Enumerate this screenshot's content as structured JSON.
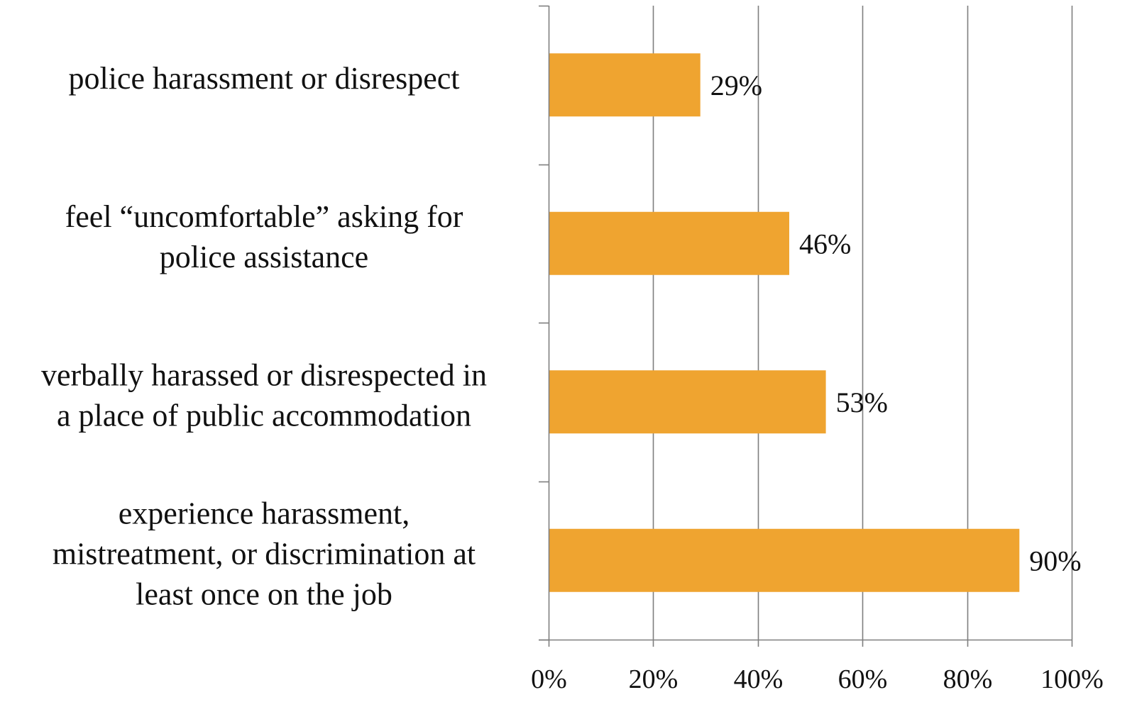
{
  "chart_data": {
    "type": "bar",
    "orientation": "horizontal",
    "categories": [
      "police harassment or disrespect",
      "feel “uncomfortable” asking for police assistance",
      "verbally harassed or disrespected in a place of public accommodation",
      "experience harassment, mistreatment, or discrimination at least once on the job"
    ],
    "category_lines": [
      [
        "police harassment or disrespect"
      ],
      [
        "feel “uncomfortable” asking for",
        "police assistance"
      ],
      [
        "verbally harassed or disrespected in",
        "a place of public accommodation"
      ],
      [
        "experience harassment,",
        "mistreatment, or discrimination at",
        "least once on the job"
      ]
    ],
    "values": [
      29,
      46,
      53,
      90
    ],
    "data_labels": [
      "29%",
      "46%",
      "53%",
      "90%"
    ],
    "xlim": [
      0,
      100
    ],
    "xticks": [
      0,
      20,
      40,
      60,
      80,
      100
    ],
    "xtick_labels": [
      "0%",
      "20%",
      "40%",
      "60%",
      "80%",
      "100%"
    ],
    "title": "",
    "xlabel": "",
    "ylabel": "",
    "grid": "vertical",
    "legend": "none",
    "colors": {
      "bar": "#EFA430",
      "grid": "#7f7f7f",
      "axis": "#7f7f7f",
      "text": "#111111"
    }
  }
}
